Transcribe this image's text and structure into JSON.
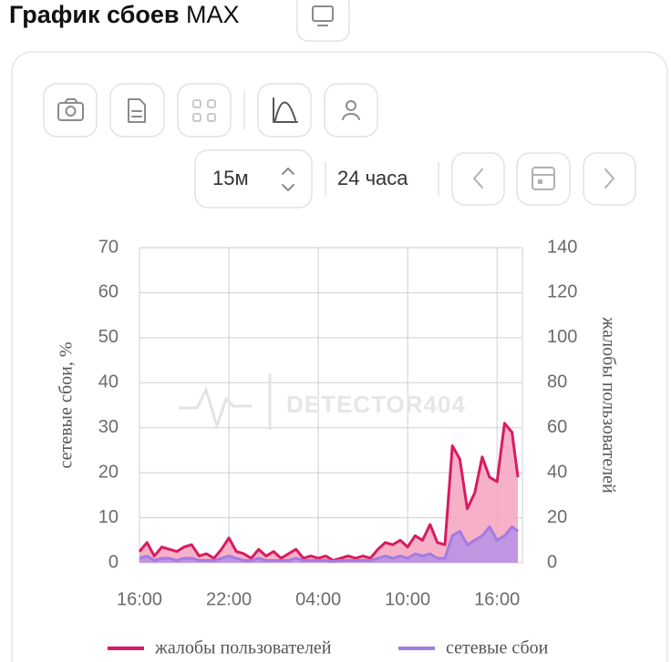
{
  "header": {
    "title": "График сбоев",
    "app": "MAX"
  },
  "toolbar": {
    "interval": "15м",
    "range": "24 часа"
  },
  "chart_data": {
    "type": "area",
    "watermark": "DETECTOR404",
    "ylabel": "сетевые сбои, %",
    "y2label": "жалобы пользователей",
    "x": [
      0,
      0.5,
      1,
      1.5,
      2,
      2.5,
      3,
      3.5,
      4,
      4.5,
      5,
      5.5,
      6,
      6.5,
      7,
      7.5,
      8,
      8.5,
      9,
      9.5,
      10,
      10.5,
      11,
      11.5,
      12,
      12.5,
      13,
      13.5,
      14,
      14.5,
      15,
      15.5,
      16,
      16.5,
      17,
      17.5,
      18,
      18.5,
      19,
      19.5,
      20,
      20.5,
      21,
      21.5,
      22,
      22.5,
      23,
      23.5,
      24,
      24.5,
      25,
      25.4
    ],
    "xlim": [
      0,
      25.7
    ],
    "xticks": [
      {
        "value": 0,
        "label": "16:00"
      },
      {
        "value": 6,
        "label": "22:00"
      },
      {
        "value": 12,
        "label": "04:00"
      },
      {
        "value": 18,
        "label": "10:00"
      },
      {
        "value": 24,
        "label": "16:00"
      }
    ],
    "ylim": [
      0,
      70
    ],
    "yticks": [
      0,
      10,
      20,
      30,
      40,
      50,
      60,
      70
    ],
    "y2lim": [
      0,
      140
    ],
    "y2ticks": [
      0,
      20,
      40,
      60,
      80,
      100,
      120,
      140
    ],
    "grid": true,
    "series": [
      {
        "name": "жалобы пользователей",
        "color": "#d81b60",
        "fill": "#f4a3bf",
        "axis": "y2",
        "values": [
          5,
          9,
          3,
          7,
          6,
          5,
          7,
          8,
          3,
          4,
          2,
          6,
          11,
          5,
          4,
          2,
          6,
          3,
          5,
          2,
          4,
          6,
          2,
          3,
          2,
          3,
          1,
          2,
          3,
          2,
          3,
          2,
          6,
          9,
          8,
          10,
          7,
          12,
          10,
          17,
          9,
          8,
          52,
          46,
          24,
          31,
          47,
          38,
          36,
          62,
          58,
          38
        ]
      },
      {
        "name": "сетевые сбои",
        "color": "#a57be0",
        "fill": "#b690e6",
        "axis": "y",
        "values": [
          1,
          1.5,
          0.5,
          1,
          1,
          0.5,
          1,
          1,
          0.5,
          0.5,
          0.5,
          1,
          1.5,
          1,
          0.5,
          0.5,
          1,
          0.5,
          0.5,
          0.5,
          0.5,
          1,
          0.5,
          0.5,
          0.5,
          0.5,
          0.3,
          0.5,
          0.5,
          0.5,
          0.5,
          0.5,
          1,
          1.5,
          1,
          1.5,
          1,
          2,
          1.5,
          2,
          1,
          1,
          6,
          7,
          4,
          5,
          6,
          8,
          5,
          6,
          8,
          7
        ]
      }
    ]
  }
}
